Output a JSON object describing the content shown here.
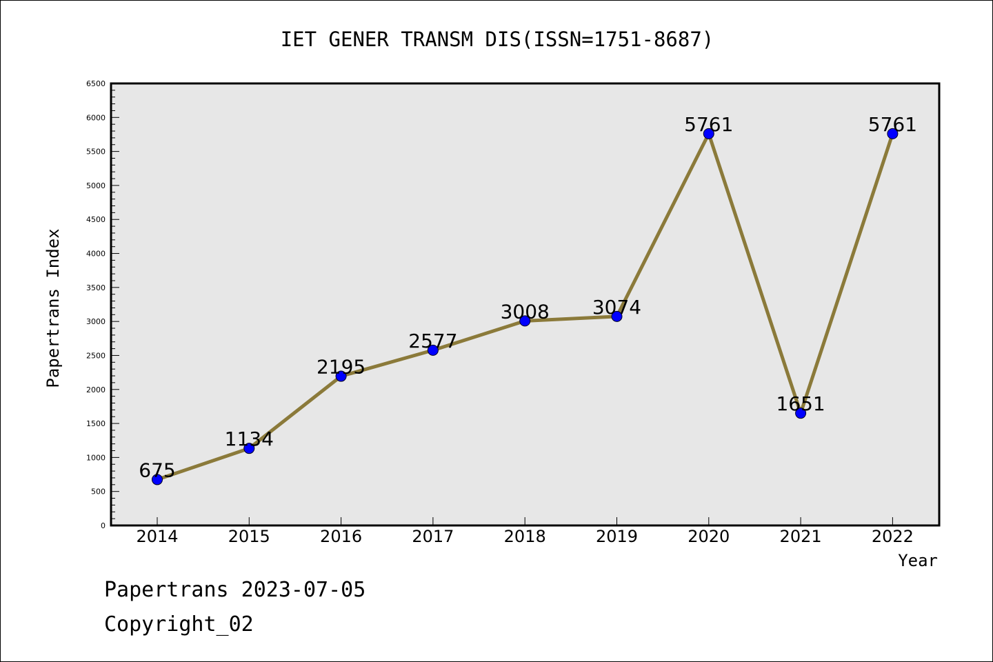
{
  "chart_data": {
    "type": "line",
    "title": "IET GENER TRANSM DIS(ISSN=1751-8687)",
    "xlabel": "Year",
    "ylabel": "Papertrans Index",
    "ylim": [
      0,
      6500
    ],
    "yticks": [
      "0",
      "500",
      "1000",
      "1500",
      "2000",
      "2500",
      "3000",
      "3500",
      "4000",
      "4500",
      "5000",
      "5500",
      "6000",
      "6500"
    ],
    "categories": [
      "2014",
      "2015",
      "2016",
      "2017",
      "2018",
      "2019",
      "2020",
      "2021",
      "2022"
    ],
    "series": [
      {
        "values": [
          675,
          1134,
          2195,
          2577,
          3008,
          3074,
          5761,
          1651,
          5761
        ]
      }
    ],
    "data_labels": [
      "675",
      "1134",
      "2195",
      "2577",
      "3008",
      "3074",
      "5761",
      "1651",
      "5761"
    ],
    "grid": false,
    "colors": {
      "plot_bg": "#e7e7e7",
      "line": "#8b7a3a",
      "marker": "#0000ff",
      "axis": "#000000"
    }
  },
  "footer": {
    "line1": "Papertrans 2023-07-05",
    "line2": "Copyright_02"
  }
}
